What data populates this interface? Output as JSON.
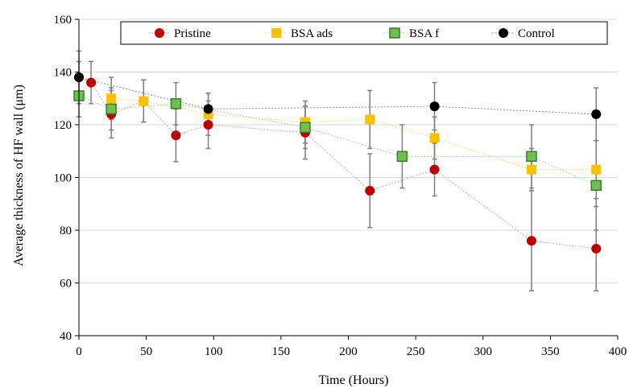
{
  "chart_data": {
    "type": "scatter",
    "title": "",
    "xlabel": "Time (Hours)",
    "ylabel": "Average thickness of HF wall (μm)",
    "xlim": [
      0,
      400
    ],
    "ylim": [
      40,
      160
    ],
    "xticks": [
      0,
      50,
      100,
      150,
      200,
      250,
      300,
      350,
      400
    ],
    "yticks": [
      40,
      60,
      80,
      100,
      120,
      140,
      160
    ],
    "grid": "horizontal",
    "legend_position": "top",
    "series": [
      {
        "name": "Pristine",
        "color": "#c00000",
        "line_color": "#e89a9a",
        "marker": "circle",
        "x": [
          0,
          9,
          24,
          48,
          72,
          96,
          168,
          216,
          264,
          336,
          384
        ],
        "y": [
          138,
          136,
          124,
          129,
          116,
          120,
          117,
          95,
          103,
          76,
          73
        ],
        "err": [
          10,
          8,
          9,
          8,
          10,
          9,
          10,
          14,
          10,
          19,
          16
        ]
      },
      {
        "name": "BSA ads",
        "color": "#ffc000",
        "line_color": "#ffd966",
        "marker": "square",
        "x": [
          24,
          48,
          96,
          168,
          216,
          264,
          336,
          384
        ],
        "y": [
          130,
          129,
          124,
          121,
          122,
          115,
          103,
          103
        ],
        "err": [
          8,
          8,
          8,
          8,
          11,
          8,
          8,
          11
        ]
      },
      {
        "name": "BSA f",
        "color": "#70c050",
        "line_color": "#9ed6a0",
        "marker": "square-outlined",
        "x": [
          0,
          24,
          72,
          168,
          240,
          336,
          384
        ],
        "y": [
          131,
          126,
          128,
          119,
          108,
          108,
          97
        ],
        "err": [
          8,
          8,
          8,
          8,
          12,
          12,
          17
        ]
      },
      {
        "name": "Control",
        "color": "#000000",
        "line_color": "#8c8c8c",
        "marker": "circle",
        "x": [
          0,
          96,
          264,
          384
        ],
        "y": [
          138,
          126,
          127,
          124
        ],
        "err": [
          6,
          6,
          9,
          10
        ]
      }
    ]
  }
}
